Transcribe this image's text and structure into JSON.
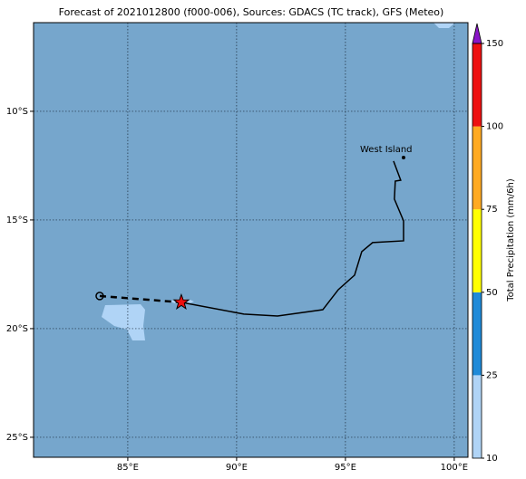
{
  "map": {
    "title": "Forecast of 2021012800 (f000-006), Sources: GDACS (TC track), GFS (Meteo)",
    "lonlim": [
      80.67,
      100.63
    ],
    "latlim": [
      -25.92,
      -5.92
    ],
    "lonticks": [
      {
        "value": 85,
        "label": "85°E"
      },
      {
        "value": 90,
        "label": "90°E"
      },
      {
        "value": 95,
        "label": "95°E"
      },
      {
        "value": 100,
        "label": "100°E"
      }
    ],
    "latticks": [
      {
        "value": -10,
        "label": "10°S"
      },
      {
        "value": -15,
        "label": "15°S"
      },
      {
        "value": -20,
        "label": "20°S"
      },
      {
        "value": -25,
        "label": "25°S"
      }
    ],
    "place": {
      "name": "West Island",
      "lon": 97.67,
      "lat": -12.13
    },
    "track": {
      "lon": [
        87.46,
        90.33,
        91.88,
        93.96,
        94.67,
        95.42,
        95.75,
        96.25,
        97.67,
        97.67,
        97.25,
        97.29,
        97.54,
        97.21
      ],
      "lat": [
        -18.79,
        -19.33,
        -19.42,
        -19.13,
        -18.21,
        -17.54,
        -16.46,
        -16.04,
        -15.96,
        -15.04,
        -14.04,
        -13.21,
        -13.17,
        -12.29
      ]
    },
    "forecast": {
      "lon": [
        83.71,
        87.46
      ],
      "lat": [
        -18.5,
        -18.79
      ]
    },
    "colorbar": {
      "label": "Total Precipitation (mm/6h)",
      "ticks": [
        10,
        25,
        50,
        75,
        100,
        150
      ],
      "colors": [
        "#b0d4f6",
        "#1f8ad8",
        "#ffff00",
        "#ffaa22",
        "#ee1111"
      ],
      "extend_color": "#8a16c8"
    }
  }
}
